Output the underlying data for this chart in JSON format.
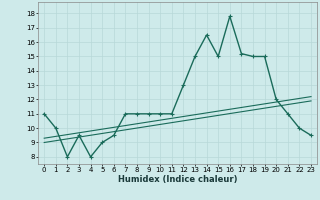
{
  "xlabel": "Humidex (Indice chaleur)",
  "background_color": "#ceeaea",
  "line_color": "#1a6b5a",
  "grid_color": "#b8d8d8",
  "xlim": [
    -0.5,
    23.5
  ],
  "ylim": [
    7.5,
    18.8
  ],
  "yticks": [
    8,
    9,
    10,
    11,
    12,
    13,
    14,
    15,
    16,
    17,
    18
  ],
  "xticks": [
    0,
    1,
    2,
    3,
    4,
    5,
    6,
    7,
    8,
    9,
    10,
    11,
    12,
    13,
    14,
    15,
    16,
    17,
    18,
    19,
    20,
    21,
    22,
    23
  ],
  "main_line_x": [
    0,
    1,
    2,
    3,
    4,
    5,
    6,
    7,
    8,
    9,
    10,
    11,
    12,
    13,
    14,
    15,
    16,
    17,
    18,
    19,
    20,
    21,
    22,
    23
  ],
  "main_line_y": [
    11,
    10,
    8,
    9.5,
    8,
    9,
    9.5,
    11,
    11,
    11,
    11,
    11,
    13,
    15,
    16.5,
    15,
    17.8,
    15.2,
    15,
    15,
    12,
    11,
    10,
    9.5
  ],
  "trend_line1_x": [
    0,
    23
  ],
  "trend_line1_y": [
    9.3,
    12.2
  ],
  "trend_line2_x": [
    0,
    23
  ],
  "trend_line2_y": [
    9.0,
    11.9
  ],
  "marker_size": 2.5,
  "line_width": 1.0,
  "tick_fontsize": 5.0,
  "xlabel_fontsize": 6.0
}
